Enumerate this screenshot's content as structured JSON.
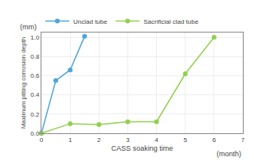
{
  "chart_data": {
    "type": "line",
    "xlabel": "CASS soaking time",
    "ylabel": "Maximum pitting corrosion depth",
    "annotations": [
      "(month)",
      "(mm)"
    ],
    "series": [
      {
        "name": "Unclad tube",
        "color": "#4ea6dc",
        "x": [
          0,
          0.5,
          1,
          1.5
        ],
        "values": [
          0.0,
          0.55,
          0.66,
          1.01
        ]
      },
      {
        "name": "Sacrificial clad tube",
        "color": "#92d050",
        "x": [
          0,
          1,
          2,
          3,
          4,
          5,
          6
        ],
        "values": [
          0.0,
          0.1,
          0.09,
          0.12,
          0.12,
          0.62,
          1.0
        ]
      }
    ],
    "xlim": [
      0,
      7
    ],
    "ylim": [
      0.0,
      1.05
    ],
    "xticks": [
      0,
      1,
      2,
      3,
      4,
      5,
      6,
      7
    ],
    "yticks": [
      {
        "value": 0.0,
        "label": "0.0"
      },
      0.2,
      0.4,
      0.6,
      0.8,
      {
        "value": 1.0,
        "label": "1.0"
      }
    ],
    "grid": true,
    "legend": "top",
    "marker": "circle",
    "line_style": "solid"
  }
}
